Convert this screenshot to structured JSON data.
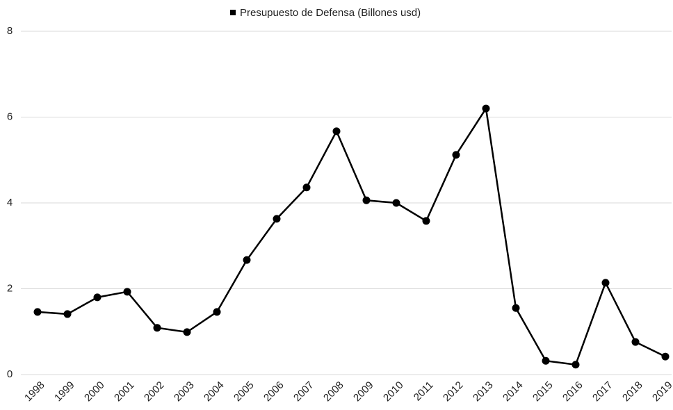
{
  "chart_data": {
    "type": "line",
    "categories": [
      "1998",
      "1999",
      "2000",
      "2001",
      "2002",
      "2003",
      "2004",
      "2005",
      "2006",
      "2007",
      "2008",
      "2009",
      "2010",
      "2011",
      "2012",
      "2013",
      "2014",
      "2015",
      "2016",
      "2017",
      "2018",
      "2019"
    ],
    "series": [
      {
        "name": "Presupuesto de Defensa (Billones usd)",
        "color": "#000000",
        "values": [
          1.46,
          1.41,
          1.8,
          1.93,
          1.09,
          0.99,
          1.46,
          2.67,
          3.63,
          4.36,
          5.67,
          4.06,
          4.0,
          3.58,
          5.12,
          6.2,
          1.55,
          0.32,
          0.23,
          2.14,
          0.76,
          0.42
        ]
      }
    ],
    "ylim": [
      0,
      8
    ],
    "yticks": [
      0,
      2,
      4,
      6,
      8
    ],
    "grid": true,
    "legend": "top"
  }
}
